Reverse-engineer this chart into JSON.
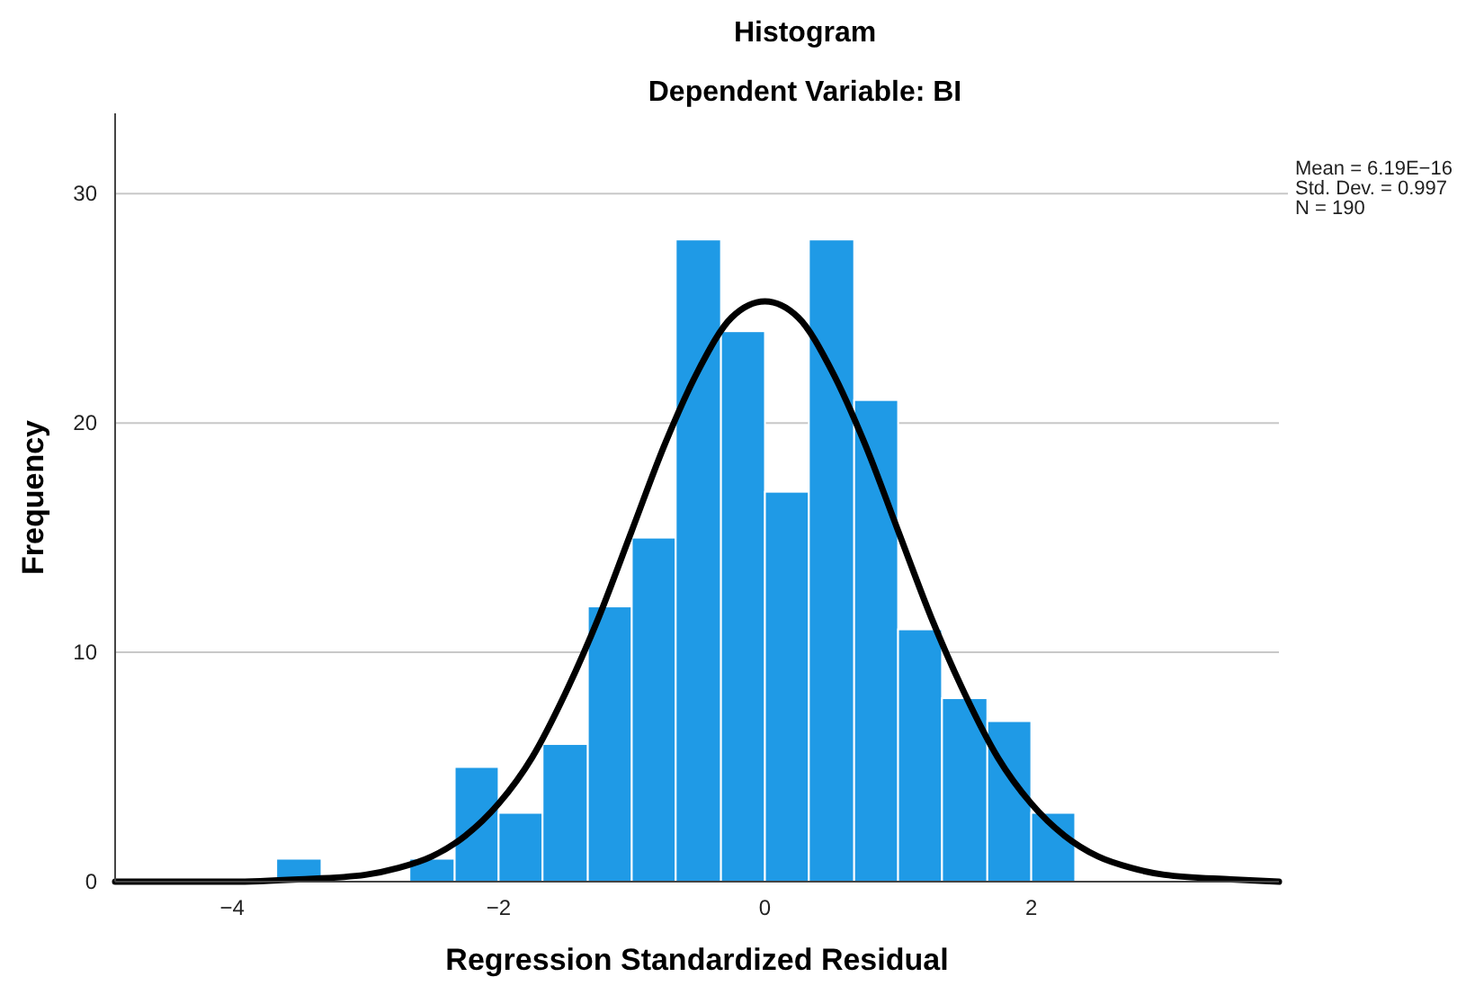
{
  "chart_data": {
    "type": "histogram",
    "title": "Histogram",
    "subtitle": "Dependent Variable: BI",
    "xlabel": "Regression Standardized Residual",
    "ylabel": "Frequency",
    "bins": [
      -3.67,
      -3.33,
      -2.67,
      -2.33,
      -2,
      -1.67,
      -1.33,
      -1,
      -0.67,
      -0.33,
      0,
      0.33,
      0.67,
      1,
      1.33,
      1.67,
      2,
      2.33
    ],
    "values": [
      1,
      0,
      1,
      5,
      3,
      6,
      12,
      15,
      28,
      24,
      17,
      28,
      21,
      11,
      8,
      7,
      3
    ],
    "color": "#1f9ae6",
    "series": [
      {
        "type": "line",
        "color": "#000000",
        "x": [
          -4.88,
          -4,
          -3.5,
          -3,
          -2.75,
          -2.5,
          -2.25,
          -2,
          -1.75,
          -1.5,
          -1.25,
          -1,
          -0.75,
          -0.5,
          -0.25,
          0,
          0.25,
          0.5,
          0.75,
          1,
          1.25,
          1.5,
          1.75,
          2,
          2.25,
          2.5,
          2.75,
          3,
          3.5,
          3.86
        ],
        "values": [
          0,
          0,
          0.1,
          0.3,
          0.6,
          1.1,
          2,
          3.4,
          5.4,
          8.2,
          11.5,
          15.3,
          19.1,
          22.3,
          24.6,
          25.3,
          24.6,
          22.3,
          19.1,
          15.3,
          11.5,
          8.2,
          5.4,
          3.4,
          2,
          1.1,
          0.6,
          0.3,
          0.1,
          0
        ]
      }
    ],
    "xlim": [
      -4.88,
      3.86
    ],
    "xticks": [
      {
        "value": -4,
        "label": "−4"
      },
      {
        "value": -2,
        "label": "−2"
      },
      0,
      2
    ],
    "ylim": [
      0,
      33.5
    ],
    "yticks": [
      0,
      10,
      20,
      30
    ],
    "grid": "y",
    "legend": false,
    "annotations": [
      "Mean = 6.19E−16",
      "Std. Dev. = 0.997",
      "N = 190"
    ]
  }
}
